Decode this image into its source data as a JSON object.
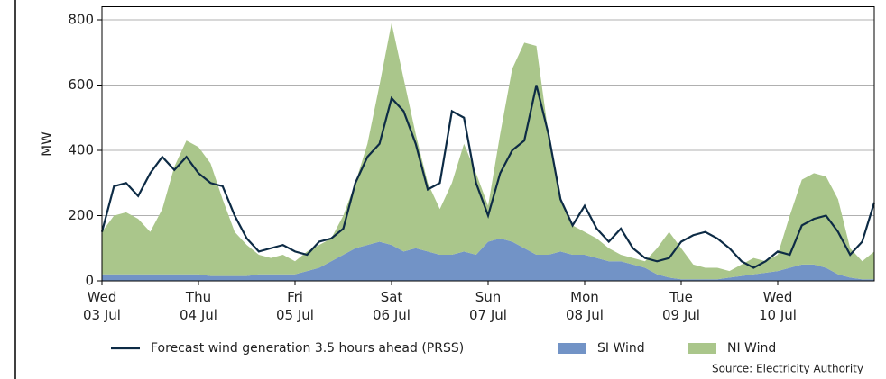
{
  "chart_data": {
    "type": "stacked_area_line",
    "ylabel": "MW",
    "source": "Source: Electricity Authority",
    "x": [
      0,
      0.125,
      0.25,
      0.375,
      0.5,
      0.625,
      0.75,
      0.875,
      1,
      1.125,
      1.25,
      1.375,
      1.5,
      1.625,
      1.75,
      1.875,
      2,
      2.125,
      2.25,
      2.375,
      2.5,
      2.625,
      2.75,
      2.875,
      3,
      3.125,
      3.25,
      3.375,
      3.5,
      3.625,
      3.75,
      3.875,
      4,
      4.125,
      4.25,
      4.375,
      4.5,
      4.625,
      4.75,
      4.875,
      5,
      5.125,
      5.25,
      5.375,
      5.5,
      5.625,
      5.75,
      5.875,
      6,
      6.125,
      6.25,
      6.375,
      6.5,
      6.625,
      6.75,
      6.875,
      7,
      7.125,
      7.25,
      7.375,
      7.5,
      7.625,
      7.75,
      7.875,
      8
    ],
    "series": [
      {
        "name": "Forecast wind generation 3.5 hours ahead (PRSS)",
        "kind": "line",
        "color": "#0d2b45",
        "values": [
          150,
          290,
          300,
          260,
          330,
          380,
          340,
          380,
          330,
          300,
          290,
          200,
          130,
          90,
          100,
          110,
          90,
          80,
          120,
          130,
          160,
          300,
          380,
          420,
          560,
          520,
          420,
          280,
          300,
          520,
          500,
          300,
          200,
          330,
          400,
          430,
          600,
          450,
          250,
          170,
          230,
          160,
          120,
          160,
          100,
          70,
          60,
          70,
          120,
          140,
          150,
          130,
          100,
          60,
          40,
          60,
          90,
          80,
          170,
          190,
          200,
          150,
          80,
          120,
          240
        ]
      },
      {
        "name": "SI Wind",
        "kind": "area",
        "color": "#7293c6",
        "values": [
          20,
          20,
          20,
          20,
          20,
          20,
          20,
          20,
          20,
          15,
          15,
          15,
          15,
          20,
          20,
          20,
          20,
          30,
          40,
          60,
          80,
          100,
          110,
          120,
          110,
          90,
          100,
          90,
          80,
          80,
          90,
          80,
          120,
          130,
          120,
          100,
          80,
          80,
          90,
          80,
          80,
          70,
          60,
          60,
          50,
          40,
          20,
          10,
          5,
          5,
          5,
          5,
          10,
          15,
          20,
          25,
          30,
          40,
          50,
          50,
          40,
          20,
          10,
          5,
          5
        ]
      },
      {
        "name": "NI Wind",
        "kind": "area",
        "color": "#aac68b",
        "values": [
          130,
          180,
          190,
          170,
          130,
          200,
          330,
          410,
          390,
          345,
          235,
          135,
          95,
          60,
          50,
          60,
          40,
          60,
          70,
          70,
          120,
          200,
          310,
          480,
          680,
          530,
          350,
          210,
          140,
          220,
          330,
          250,
          110,
          320,
          530,
          630,
          640,
          370,
          160,
          90,
          70,
          60,
          40,
          20,
          20,
          20,
          80,
          140,
          95,
          45,
          35,
          35,
          20,
          35,
          50,
          35,
          50,
          160,
          260,
          280,
          280,
          230,
          90,
          55,
          85
        ]
      }
    ],
    "xlim": [
      0,
      8
    ],
    "xticks": [
      {
        "value": 0,
        "label": "Wed\n03 Jul"
      },
      {
        "value": 1,
        "label": "Thu\n04 Jul"
      },
      {
        "value": 2,
        "label": "Fri\n05 Jul"
      },
      {
        "value": 3,
        "label": "Sat\n06 Jul"
      },
      {
        "value": 4,
        "label": "Sun\n07 Jul"
      },
      {
        "value": 5,
        "label": "Mon\n08 Jul"
      },
      {
        "value": 6,
        "label": "Tue\n09 Jul"
      },
      {
        "value": 7,
        "label": "Wed\n10 Jul"
      }
    ],
    "ylim": [
      0,
      840
    ],
    "yticks": [
      0,
      200,
      400,
      600,
      800
    ],
    "grid": true
  }
}
